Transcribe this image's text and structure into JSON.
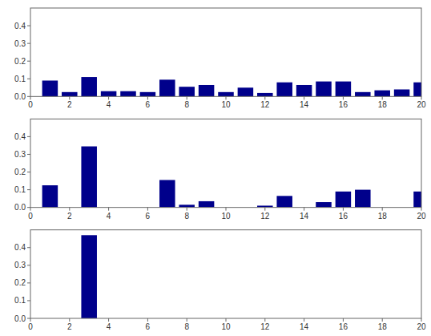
{
  "chart_data": [
    {
      "type": "bar",
      "x": [
        1,
        2,
        3,
        4,
        5,
        6,
        7,
        8,
        9,
        10,
        11,
        12,
        13,
        14,
        15,
        16,
        17,
        18,
        19,
        20
      ],
      "values": [
        0.09,
        0.025,
        0.11,
        0.03,
        0.03,
        0.025,
        0.095,
        0.055,
        0.065,
        0.025,
        0.05,
        0.02,
        0.08,
        0.065,
        0.085,
        0.085,
        0.025,
        0.035,
        0.04,
        0.08
      ],
      "color": "#00008B",
      "xlim": [
        0,
        20
      ],
      "xticks": [
        0,
        2,
        4,
        6,
        8,
        10,
        12,
        14,
        16,
        18,
        20
      ],
      "ylim": [
        0,
        0.5
      ],
      "yticks": [
        {
          "value": 0,
          "label": "0.0"
        },
        0.1,
        0.2,
        0.3,
        0.4
      ]
    },
    {
      "type": "bar",
      "x": [
        1,
        2,
        3,
        4,
        5,
        6,
        7,
        8,
        9,
        10,
        11,
        12,
        13,
        14,
        15,
        16,
        17,
        18,
        19,
        20
      ],
      "values": [
        0.125,
        0.0,
        0.345,
        0.0,
        0.0,
        0.0,
        0.155,
        0.015,
        0.035,
        0.0,
        0.0,
        0.01,
        0.065,
        0.0,
        0.03,
        0.09,
        0.1,
        0.0,
        0.0,
        0.09
      ],
      "color": "#00008B",
      "xlim": [
        0,
        20
      ],
      "xticks": [
        0,
        2,
        4,
        6,
        8,
        10,
        12,
        14,
        16,
        18,
        20
      ],
      "ylim": [
        0,
        0.5
      ],
      "yticks": [
        {
          "value": 0,
          "label": "0.0"
        },
        0.1,
        0.2,
        0.3,
        0.4
      ]
    },
    {
      "type": "bar",
      "x": [
        1,
        2,
        3,
        4,
        5,
        6,
        7,
        8,
        9,
        10,
        11,
        12,
        13,
        14,
        15,
        16,
        17,
        18,
        19,
        20
      ],
      "values": [
        0.0,
        0.0,
        0.47,
        0.0,
        0.0,
        0.0,
        0.0,
        0.0,
        0.0,
        0.0,
        0.0,
        0.0,
        0.0,
        0.0,
        0.0,
        0.0,
        0.0,
        0.0,
        0.0,
        0.0
      ],
      "color": "#00008B",
      "xlim": [
        0,
        20
      ],
      "xticks": [
        0,
        2,
        4,
        6,
        8,
        10,
        12,
        14,
        16,
        18,
        20
      ],
      "ylim": [
        0,
        0.5
      ],
      "yticks": [
        {
          "value": 0,
          "label": "0.0"
        },
        0.1,
        0.2,
        0.3,
        0.4
      ]
    }
  ]
}
